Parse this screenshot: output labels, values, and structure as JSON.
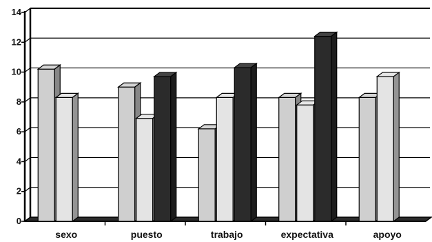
{
  "chart_data": {
    "type": "bar",
    "categories": [
      "sexo",
      "puesto",
      "trabajo",
      "expectativa",
      "apoyo"
    ],
    "series": [
      {
        "values": [
          10.2,
          9.0,
          6.2,
          8.3,
          8.3
        ],
        "color": "#cfcfcf"
      },
      {
        "values": [
          8.3,
          6.9,
          8.3,
          7.8,
          9.7
        ],
        "color": "#e4e4e4"
      },
      {
        "values": [
          null,
          9.7,
          10.3,
          12.4,
          null
        ],
        "color": "#2b2b2b"
      }
    ],
    "ylim": [
      0,
      14
    ],
    "yticks": [
      "0",
      "2",
      "4",
      "6",
      "8",
      "10",
      "12",
      "14"
    ],
    "grid": true,
    "title": "",
    "xlabel": "",
    "ylabel": ""
  }
}
